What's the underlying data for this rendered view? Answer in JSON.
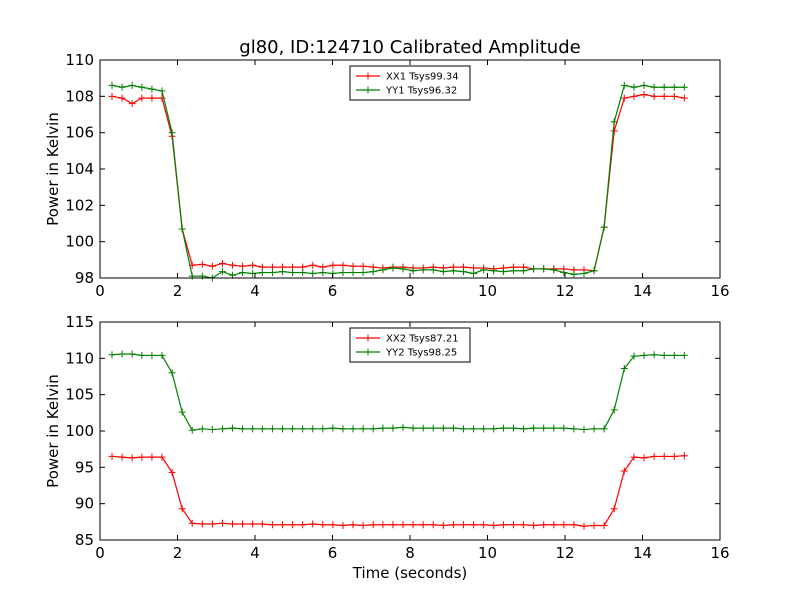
{
  "title": "gl80, ID:124710 Calibrated Amplitude",
  "colors": {
    "xx": "#ff0000",
    "yy": "#008000"
  },
  "chart_data": [
    {
      "type": "line",
      "xlabel": "",
      "ylabel": "Power in Kelvin",
      "xlim": [
        0,
        16
      ],
      "ylim": [
        98,
        110
      ],
      "xticks": [
        0,
        2,
        4,
        6,
        8,
        10,
        12,
        14,
        16
      ],
      "yticks": [
        98,
        100,
        102,
        104,
        106,
        108,
        110
      ],
      "legend_position": "top-center",
      "grid": false,
      "x": [
        0.31,
        0.57,
        0.83,
        1.08,
        1.34,
        1.6,
        1.86,
        2.12,
        2.38,
        2.64,
        2.9,
        3.16,
        3.42,
        3.68,
        3.94,
        4.19,
        4.45,
        4.71,
        4.97,
        5.23,
        5.49,
        5.75,
        6.01,
        6.27,
        6.53,
        6.79,
        7.05,
        7.3,
        7.56,
        7.82,
        8.08,
        8.34,
        8.6,
        8.86,
        9.12,
        9.38,
        9.64,
        9.9,
        10.16,
        10.41,
        10.67,
        10.93,
        11.19,
        11.45,
        11.71,
        11.97,
        12.23,
        12.49,
        12.75,
        13.01,
        13.27,
        13.53,
        13.78,
        14.04,
        14.3,
        14.56,
        14.82,
        15.08
      ],
      "series": [
        {
          "name": "XX1 Tsys99.34",
          "color": "#ff0000",
          "values": [
            108.0,
            107.9,
            107.6,
            107.9,
            107.9,
            107.9,
            105.8,
            100.7,
            98.7,
            98.75,
            98.65,
            98.8,
            98.7,
            98.65,
            98.7,
            98.6,
            98.6,
            98.6,
            98.6,
            98.6,
            98.7,
            98.6,
            98.7,
            98.7,
            98.65,
            98.65,
            98.6,
            98.55,
            98.6,
            98.6,
            98.55,
            98.55,
            98.6,
            98.55,
            98.6,
            98.6,
            98.55,
            98.55,
            98.5,
            98.55,
            98.6,
            98.6,
            98.5,
            98.5,
            98.5,
            98.5,
            98.45,
            98.45,
            98.4,
            100.8,
            106.1,
            107.9,
            108.0,
            108.1,
            108.0,
            108.0,
            108.0,
            107.9
          ]
        },
        {
          "name": "YY1 Tsys96.32",
          "color": "#008000",
          "values": [
            108.6,
            108.5,
            108.6,
            108.5,
            108.4,
            108.3,
            106.0,
            100.7,
            98.1,
            98.1,
            98.0,
            98.35,
            98.15,
            98.3,
            98.25,
            98.3,
            98.3,
            98.35,
            98.3,
            98.3,
            98.25,
            98.3,
            98.25,
            98.3,
            98.3,
            98.3,
            98.35,
            98.45,
            98.55,
            98.5,
            98.4,
            98.45,
            98.45,
            98.35,
            98.4,
            98.35,
            98.25,
            98.45,
            98.4,
            98.35,
            98.4,
            98.4,
            98.5,
            98.5,
            98.45,
            98.3,
            98.2,
            98.25,
            98.4,
            100.8,
            106.6,
            108.6,
            108.5,
            108.6,
            108.5,
            108.5,
            108.5,
            108.5
          ]
        }
      ]
    },
    {
      "type": "line",
      "xlabel": "Time (seconds)",
      "ylabel": "Power in Kelvin",
      "xlim": [
        0,
        16
      ],
      "ylim": [
        85,
        115
      ],
      "xticks": [
        0,
        2,
        4,
        6,
        8,
        10,
        12,
        14,
        16
      ],
      "yticks": [
        85,
        90,
        95,
        100,
        105,
        110,
        115
      ],
      "legend_position": "top-center",
      "grid": false,
      "x": [
        0.31,
        0.57,
        0.83,
        1.08,
        1.34,
        1.6,
        1.86,
        2.12,
        2.38,
        2.64,
        2.9,
        3.16,
        3.42,
        3.68,
        3.94,
        4.19,
        4.45,
        4.71,
        4.97,
        5.23,
        5.49,
        5.75,
        6.01,
        6.27,
        6.53,
        6.79,
        7.05,
        7.3,
        7.56,
        7.82,
        8.08,
        8.34,
        8.6,
        8.86,
        9.12,
        9.38,
        9.64,
        9.9,
        10.16,
        10.41,
        10.67,
        10.93,
        11.19,
        11.45,
        11.71,
        11.97,
        12.23,
        12.49,
        12.75,
        13.01,
        13.27,
        13.53,
        13.78,
        14.04,
        14.3,
        14.56,
        14.82,
        15.08
      ],
      "series": [
        {
          "name": "XX2 Tsys87.21",
          "color": "#ff0000",
          "values": [
            96.5,
            96.4,
            96.3,
            96.4,
            96.4,
            96.4,
            94.3,
            89.3,
            87.3,
            87.2,
            87.2,
            87.3,
            87.2,
            87.2,
            87.2,
            87.2,
            87.1,
            87.1,
            87.1,
            87.1,
            87.2,
            87.1,
            87.1,
            87.0,
            87.1,
            87.0,
            87.1,
            87.1,
            87.1,
            87.1,
            87.1,
            87.1,
            87.1,
            87.0,
            87.1,
            87.1,
            87.1,
            87.1,
            87.0,
            87.1,
            87.1,
            87.1,
            87.0,
            87.1,
            87.1,
            87.1,
            87.1,
            86.9,
            87.0,
            87.0,
            89.3,
            94.5,
            96.4,
            96.3,
            96.5,
            96.5,
            96.5,
            96.6
          ]
        },
        {
          "name": "YY2 Tsys98.25",
          "color": "#008000",
          "values": [
            110.5,
            110.6,
            110.6,
            110.4,
            110.4,
            110.4,
            108.0,
            102.6,
            100.1,
            100.3,
            100.2,
            100.3,
            100.4,
            100.3,
            100.3,
            100.3,
            100.3,
            100.3,
            100.3,
            100.3,
            100.3,
            100.3,
            100.4,
            100.3,
            100.3,
            100.3,
            100.3,
            100.4,
            100.4,
            100.5,
            100.4,
            100.4,
            100.4,
            100.4,
            100.4,
            100.3,
            100.3,
            100.3,
            100.3,
            100.4,
            100.4,
            100.3,
            100.4,
            100.4,
            100.4,
            100.4,
            100.3,
            100.2,
            100.3,
            100.3,
            102.9,
            108.6,
            110.3,
            110.4,
            110.5,
            110.4,
            110.4,
            110.4
          ]
        }
      ]
    }
  ]
}
